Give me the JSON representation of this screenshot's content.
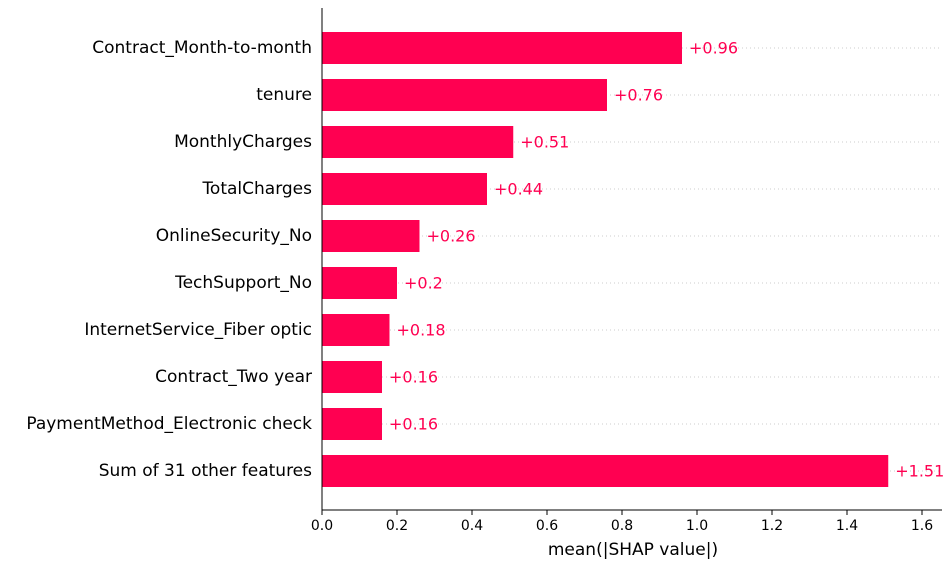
{
  "chart_data": {
    "type": "bar",
    "orientation": "horizontal",
    "categories": [
      "Contract_Month-to-month",
      "tenure",
      "MonthlyCharges",
      "TotalCharges",
      "OnlineSecurity_No",
      "TechSupport_No",
      "InternetService_Fiber optic",
      "Contract_Two year",
      "PaymentMethod_Electronic check",
      "Sum of 31 other features"
    ],
    "values": [
      0.96,
      0.76,
      0.51,
      0.44,
      0.26,
      0.2,
      0.18,
      0.16,
      0.16,
      1.51
    ],
    "data_labels": [
      "+0.96",
      "+0.76",
      "+0.51",
      "+0.44",
      "+0.26",
      "+0.2",
      "+0.18",
      "+0.16",
      "+0.16",
      "+1.51"
    ],
    "xlabel": "mean(|SHAP value|)",
    "ylabel": "",
    "title": "",
    "xlim": [
      0,
      1.65
    ],
    "xticks": [
      0.0,
      0.2,
      0.4,
      0.6,
      0.8,
      1.0,
      1.2,
      1.4,
      1.6
    ],
    "xtick_labels": [
      "0.0",
      "0.2",
      "0.4",
      "0.6",
      "0.8",
      "1.0",
      "1.2",
      "1.4",
      "1.6"
    ],
    "grid": "dotted horizontal guide lines per row",
    "legend": "none",
    "colors": {
      "bar": "#ff0051",
      "label": "#ff0051",
      "axis": "#000000",
      "guide": "#cccccc",
      "text": "#000000"
    }
  }
}
